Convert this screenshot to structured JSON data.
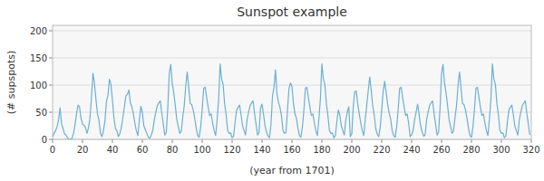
{
  "chart_data": {
    "type": "line",
    "title": "Sunspot example",
    "xlabel": "(year from 1701)",
    "ylabel": "(# supspots)",
    "xlim": [
      0,
      320
    ],
    "ylim": [
      0,
      210
    ],
    "xticks": [
      0,
      20,
      40,
      60,
      80,
      100,
      120,
      140,
      160,
      180,
      200,
      220,
      240,
      260,
      280,
      300,
      320
    ],
    "yticks": [
      0,
      50,
      100,
      150,
      200
    ],
    "grid": true,
    "color": "#6ab0d4",
    "x": [
      0,
      1,
      2,
      3,
      4,
      5,
      6,
      7,
      8,
      9,
      10,
      11,
      12,
      13,
      14,
      15,
      16,
      17,
      18,
      19,
      20,
      21,
      22,
      23,
      24,
      25,
      26,
      27,
      28,
      29,
      30,
      31,
      32,
      33,
      34,
      35,
      36,
      37,
      38,
      39,
      40,
      41,
      42,
      43,
      44,
      45,
      46,
      47,
      48,
      49,
      50,
      51,
      52,
      53,
      54,
      55,
      56,
      57,
      58,
      59,
      60,
      61,
      62,
      63,
      64,
      65,
      66,
      67,
      68,
      69,
      70,
      71,
      72,
      73,
      74,
      75,
      76,
      77,
      78,
      79,
      80,
      81,
      82,
      83,
      84,
      85,
      86,
      87,
      88,
      89,
      90,
      91,
      92,
      93,
      94,
      95,
      96,
      97,
      98,
      99,
      100,
      101,
      102,
      103,
      104,
      105,
      106,
      107,
      108,
      109,
      110,
      111,
      112,
      113,
      114,
      115,
      116,
      117,
      118,
      119,
      120,
      121,
      122,
      123,
      124,
      125,
      126,
      127,
      128,
      129,
      130,
      131,
      132,
      133,
      134,
      135,
      136,
      137,
      138,
      139,
      140,
      141,
      142,
      143,
      144,
      145,
      146,
      147,
      148,
      149,
      150,
      151,
      152,
      153,
      154,
      155,
      156,
      157,
      158,
      159,
      160,
      161,
      162,
      163,
      164,
      165,
      166,
      167,
      168,
      169,
      170,
      171,
      172,
      173,
      174,
      175,
      176,
      177,
      178,
      179,
      180,
      181,
      182,
      183,
      184,
      185,
      186,
      187,
      188,
      189,
      190,
      191,
      192,
      193,
      194,
      195,
      196,
      197,
      198,
      199,
      200,
      201,
      202,
      203,
      204,
      205,
      206,
      207,
      208,
      209,
      210,
      211,
      212,
      213,
      214,
      215,
      216,
      217,
      218,
      219,
      220,
      221,
      222,
      223,
      224,
      225,
      226,
      227,
      228,
      229,
      230,
      231,
      232,
      233,
      234,
      235,
      236,
      237,
      238,
      239,
      240,
      241,
      242,
      243,
      244,
      245,
      246,
      247,
      248,
      249,
      250,
      251,
      252,
      253,
      254,
      255,
      256,
      257,
      258,
      259,
      260,
      261,
      262,
      263,
      264,
      265,
      266,
      267,
      268,
      269,
      270,
      271,
      272,
      273,
      274,
      275,
      276,
      277,
      278,
      279,
      280,
      281,
      282,
      283,
      284,
      285,
      286,
      287,
      288,
      289,
      290,
      291,
      292,
      293,
      294,
      295,
      296,
      297,
      298,
      299,
      300,
      301,
      302,
      303,
      304,
      305,
      306,
      307,
      308,
      309,
      310,
      311,
      312,
      313,
      314,
      315,
      316,
      317,
      318,
      319
    ],
    "values": [
      5,
      11,
      16,
      23,
      36,
      58,
      29,
      20,
      10,
      8,
      3,
      0,
      0,
      2,
      11,
      27,
      47,
      63,
      60,
      39,
      28,
      26,
      22,
      11,
      21,
      40,
      78,
      122,
      103,
      73,
      47,
      35,
      11,
      5,
      16,
      34,
      70,
      81,
      111,
      101,
      73,
      40,
      20,
      16,
      5,
      11,
      22,
      40,
      60,
      80,
      83,
      91,
      67,
      60,
      47,
      30,
      16,
      7,
      35,
      61,
      50,
      25,
      18,
      11,
      4,
      2,
      8,
      17,
      36,
      50,
      62,
      67,
      71,
      48,
      28,
      8,
      13,
      57,
      122,
      138,
      103,
      86,
      63,
      37,
      24,
      11,
      15,
      40,
      62,
      98,
      124,
      96,
      66,
      64,
      54,
      39,
      21,
      7,
      4,
      23,
      55,
      94,
      96,
      77,
      59,
      44,
      47,
      30,
      16,
      7,
      37,
      74,
      139,
      111,
      101,
      66,
      45,
      17,
      11,
      12,
      3,
      6,
      32,
      54,
      59,
      63,
      45,
      25,
      16,
      8,
      36,
      50,
      62,
      67,
      71,
      48,
      28,
      8,
      13,
      57,
      65,
      46,
      25,
      14,
      6,
      3,
      28,
      80,
      96,
      128,
      84,
      68,
      59,
      44,
      17,
      11,
      12,
      53,
      93,
      104,
      97,
      67,
      47,
      39,
      21,
      7,
      4,
      23,
      55,
      94,
      96,
      77,
      59,
      44,
      47,
      30,
      16,
      7,
      37,
      74,
      139,
      111,
      101,
      66,
      45,
      17,
      11,
      12,
      3,
      6,
      32,
      54,
      45,
      25,
      16,
      8,
      36,
      50,
      60,
      5,
      10,
      61,
      88,
      89,
      64,
      47,
      30,
      16,
      7,
      37,
      62,
      90,
      115,
      90,
      62,
      45,
      20,
      10,
      5,
      22,
      54,
      89,
      107,
      86,
      64,
      48,
      37,
      16,
      7,
      4,
      23,
      55,
      94,
      96,
      77,
      59,
      44,
      47,
      30,
      5,
      8,
      17,
      36,
      50,
      65,
      46,
      25,
      14,
      6,
      8,
      36,
      50,
      62,
      67,
      71,
      48,
      28,
      8,
      13,
      57,
      122,
      138,
      103,
      86,
      63,
      37,
      24,
      11,
      15,
      40,
      62,
      98,
      124,
      96,
      66,
      64,
      54,
      39,
      21,
      7,
      4,
      23,
      55,
      94,
      96,
      77,
      59,
      44,
      47,
      30,
      16,
      7,
      37,
      74,
      139,
      111,
      101,
      66,
      45,
      17,
      11,
      12,
      3,
      6,
      32,
      54,
      59,
      63,
      45,
      25,
      16,
      8,
      36,
      50,
      62,
      67,
      71,
      48,
      28,
      8
    ]
  }
}
